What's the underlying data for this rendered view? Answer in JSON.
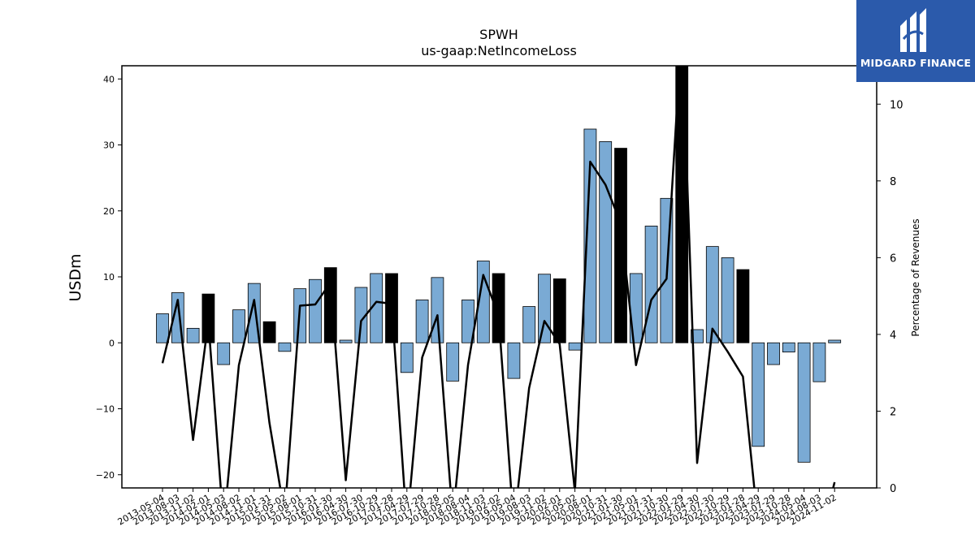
{
  "brand": {
    "name": "MIDGARD FINANCE",
    "color": "#2b5aab"
  },
  "chart_data": {
    "type": "bar",
    "title": "SPWH",
    "subtitle": "us-gaap:NetIncomeLoss",
    "ylabel": "USDm",
    "y2label": "Percentage of Revenues",
    "ylim": [
      -22,
      42
    ],
    "y2lim": [
      0,
      11
    ],
    "yticks": [
      -20,
      -10,
      0,
      10,
      20,
      30,
      40
    ],
    "y2ticks": [
      0,
      2,
      4,
      6,
      8,
      10
    ],
    "bar_color": "#7aaad4",
    "highlight_color": "#000000",
    "line_color": "#000000",
    "categories": [
      "2013-05-04",
      "2013-08-03",
      "2013-11-02",
      "2014-02-01",
      "2014-05-03",
      "2014-08-02",
      "2014-11-01",
      "2015-01-31",
      "2015-05-02",
      "2015-08-01",
      "2015-10-31",
      "2016-01-30",
      "2016-04-30",
      "2016-07-30",
      "2016-10-29",
      "2017-01-28",
      "2017-04-29",
      "2017-07-29",
      "2017-10-28",
      "2018-05-05",
      "2018-08-04",
      "2018-11-03",
      "2019-02-02",
      "2019-05-04",
      "2019-08-03",
      "2019-11-02",
      "2020-02-01",
      "2020-05-02",
      "2020-08-01",
      "2020-10-31",
      "2021-01-30",
      "2021-05-01",
      "2021-07-31",
      "2021-10-30",
      "2022-01-29",
      "2022-04-30",
      "2022-07-30",
      "2022-10-29",
      "2023-01-28",
      "2023-04-29",
      "2023-07-29",
      "2023-10-28",
      "2024-05-04",
      "2024-08-03",
      "2024-11-02"
    ],
    "series": [
      {
        "kind": "bar",
        "values": [
          4.4,
          7.6,
          2.2,
          7.4,
          -3.3,
          5.0,
          9.0,
          3.2,
          -1.3,
          8.2,
          9.6,
          11.4,
          0.4,
          8.4,
          10.5,
          10.5,
          -4.5,
          6.5,
          9.9,
          -5.8,
          6.5,
          12.4,
          10.5,
          -5.4,
          5.5,
          10.4,
          9.7,
          -1.1,
          32.4,
          30.5,
          29.5,
          10.5,
          17.7,
          21.9,
          42.5,
          2.0,
          14.6,
          12.9,
          11.1,
          -15.7,
          -3.3,
          -1.4,
          -18.1,
          -5.9,
          0.4
        ],
        "highlight": [
          false,
          false,
          false,
          true,
          false,
          false,
          false,
          true,
          false,
          false,
          false,
          true,
          false,
          false,
          false,
          true,
          false,
          false,
          false,
          false,
          false,
          false,
          true,
          false,
          false,
          false,
          true,
          false,
          false,
          false,
          true,
          false,
          false,
          false,
          true,
          false,
          false,
          false,
          true,
          false,
          false,
          false,
          false,
          false,
          false
        ]
      },
      {
        "kind": "line",
        "axis": "right",
        "values": [
          3.25,
          4.9,
          1.25,
          4.35,
          -1.0,
          3.2,
          4.9,
          1.7,
          -0.7,
          4.75,
          4.78,
          5.35,
          0.2,
          4.35,
          4.85,
          4.8,
          -1.0,
          3.4,
          4.5,
          -0.8,
          3.2,
          5.55,
          4.5,
          -1.0,
          2.6,
          4.35,
          3.75,
          -0.1,
          8.5,
          7.9,
          6.9,
          3.2,
          4.9,
          5.45,
          12.0,
          0.65,
          4.15,
          3.55,
          2.9,
          -1.0,
          null,
          null,
          null,
          null,
          0.15
        ]
      }
    ],
    "grid": false,
    "legend": "none"
  }
}
